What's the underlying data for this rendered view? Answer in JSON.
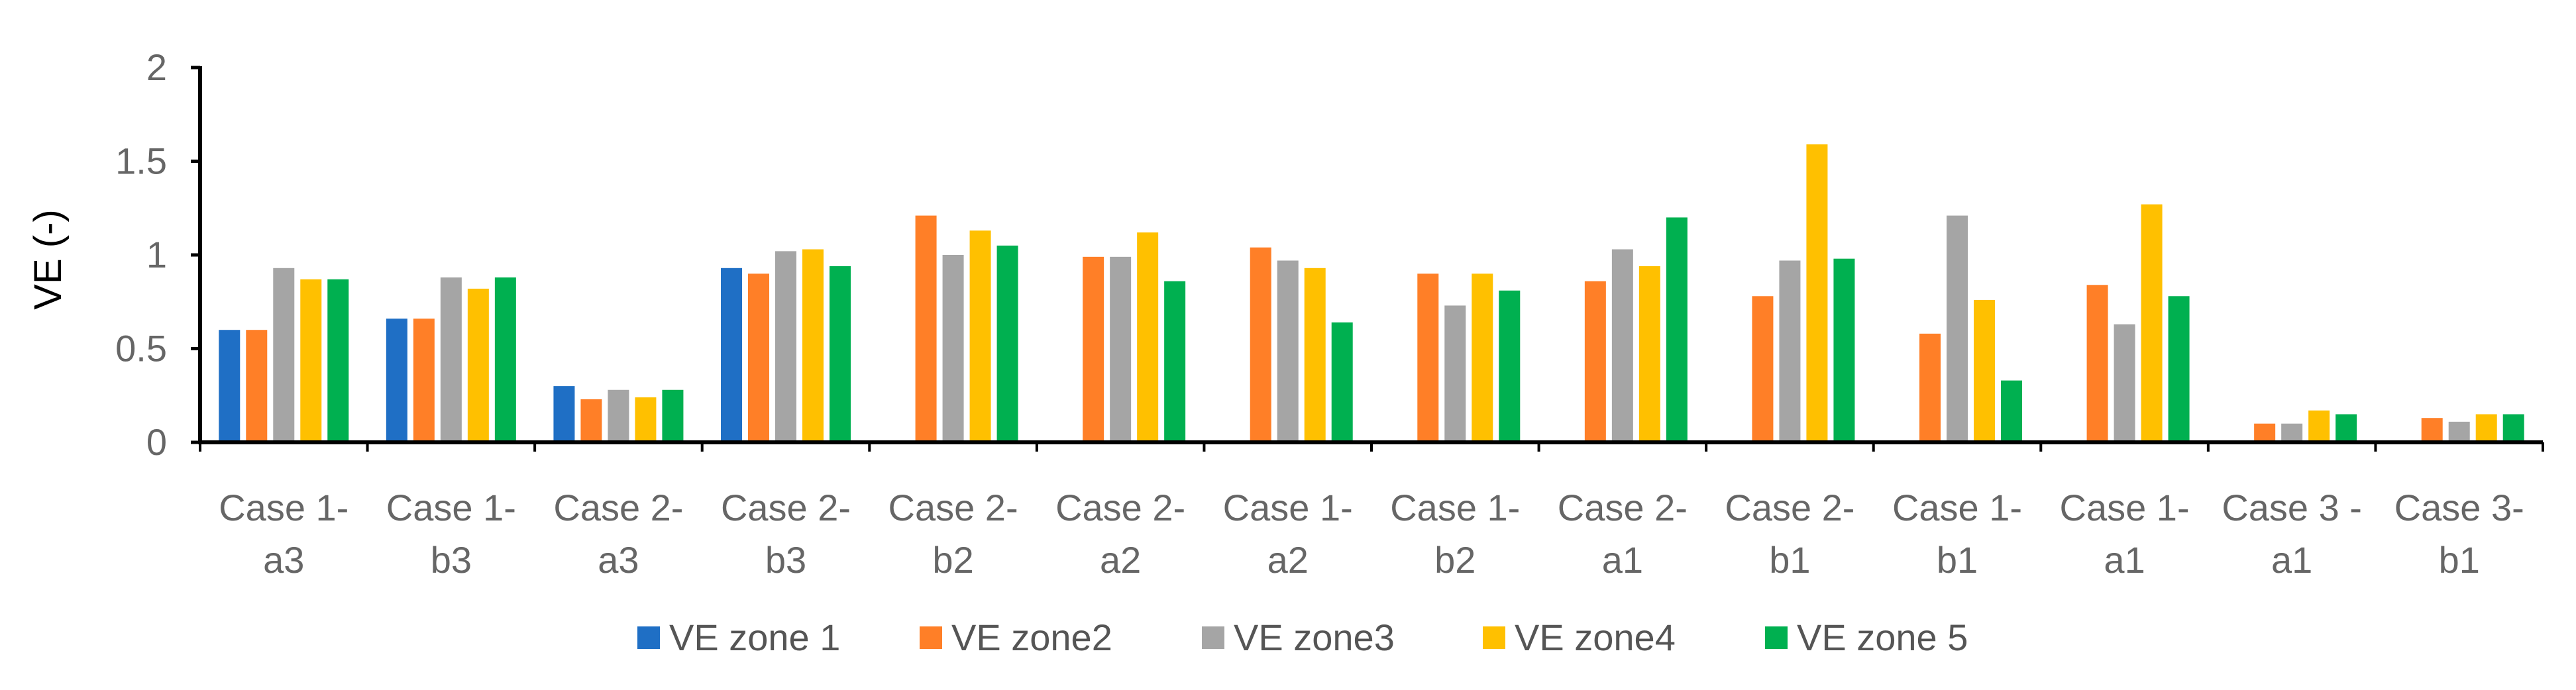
{
  "chart_data": {
    "type": "bar",
    "title": "",
    "xlabel": "",
    "ylabel": "VE (-)",
    "ylim": [
      0,
      2
    ],
    "yticks": [
      "0",
      "0.5",
      "1",
      "1.5",
      "2"
    ],
    "ytick_values": [
      0,
      0.5,
      1,
      1.5,
      2
    ],
    "grid": false,
    "legend_position": "bottom",
    "categories": [
      [
        "Case 1-",
        "a3"
      ],
      [
        "Case 1-",
        "b3"
      ],
      [
        "Case 2-",
        "a3"
      ],
      [
        "Case 2-",
        "b3"
      ],
      [
        "Case 2-",
        "b2"
      ],
      [
        "Case 2-",
        "a2"
      ],
      [
        "Case 1-",
        "a2"
      ],
      [
        "Case 1-",
        "b2"
      ],
      [
        "Case 2-",
        "a1"
      ],
      [
        "Case 2-",
        "b1"
      ],
      [
        "Case 1-",
        "b1"
      ],
      [
        "Case 1-",
        "a1"
      ],
      [
        "Case 3 -",
        "a1"
      ],
      [
        "Case 3-",
        "b1"
      ]
    ],
    "series": [
      {
        "name": "VE zone 1",
        "color": "#1f6fc5",
        "values": [
          0.6,
          0.66,
          0.3,
          0.93,
          null,
          null,
          null,
          null,
          null,
          null,
          null,
          null,
          null,
          null
        ]
      },
      {
        "name": "VE zone2",
        "color": "#ff7f27",
        "values": [
          0.6,
          0.66,
          0.23,
          0.9,
          1.21,
          0.99,
          1.04,
          0.9,
          0.86,
          0.78,
          0.58,
          0.84,
          0.1,
          0.13
        ]
      },
      {
        "name": "VE zone3",
        "color": "#a5a5a5",
        "values": [
          0.93,
          0.88,
          0.28,
          1.02,
          1.0,
          0.99,
          0.97,
          0.73,
          1.03,
          0.97,
          1.21,
          0.63,
          0.1,
          0.11
        ]
      },
      {
        "name": "VE zone4",
        "color": "#ffc000",
        "values": [
          0.87,
          0.82,
          0.24,
          1.03,
          1.13,
          1.12,
          0.93,
          0.9,
          0.94,
          1.59,
          0.76,
          1.27,
          0.17,
          0.15
        ]
      },
      {
        "name": "VE zone 5",
        "color": "#00b050",
        "values": [
          0.87,
          0.88,
          0.28,
          0.94,
          1.05,
          0.86,
          0.64,
          0.81,
          1.2,
          0.98,
          0.33,
          0.78,
          0.15,
          0.15
        ]
      }
    ]
  }
}
